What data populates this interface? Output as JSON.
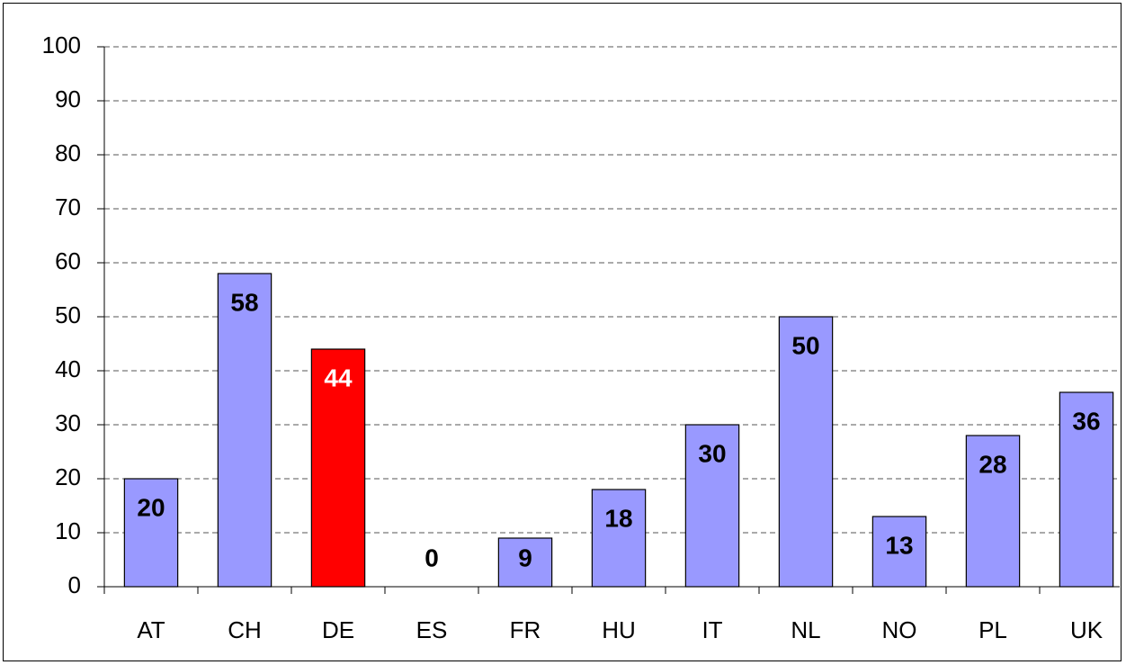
{
  "chart_data": {
    "type": "bar",
    "categories": [
      "AT",
      "CH",
      "DE",
      "ES",
      "FR",
      "HU",
      "IT",
      "NL",
      "NO",
      "PL",
      "UK"
    ],
    "values": [
      20,
      58,
      44,
      0,
      9,
      18,
      30,
      50,
      13,
      28,
      36
    ],
    "colors": [
      "#9999ff",
      "#9999ff",
      "#ff0000",
      "#9999ff",
      "#9999ff",
      "#9999ff",
      "#9999ff",
      "#9999ff",
      "#9999ff",
      "#9999ff",
      "#9999ff"
    ],
    "value_label_colors": [
      "#000000",
      "#000000",
      "#ffffff",
      "#000000",
      "#000000",
      "#000000",
      "#000000",
      "#000000",
      "#000000",
      "#000000",
      "#000000"
    ],
    "ylim": [
      0,
      100
    ],
    "yticks": [
      0,
      10,
      20,
      30,
      40,
      50,
      60,
      70,
      80,
      90,
      100
    ],
    "grid": true
  }
}
